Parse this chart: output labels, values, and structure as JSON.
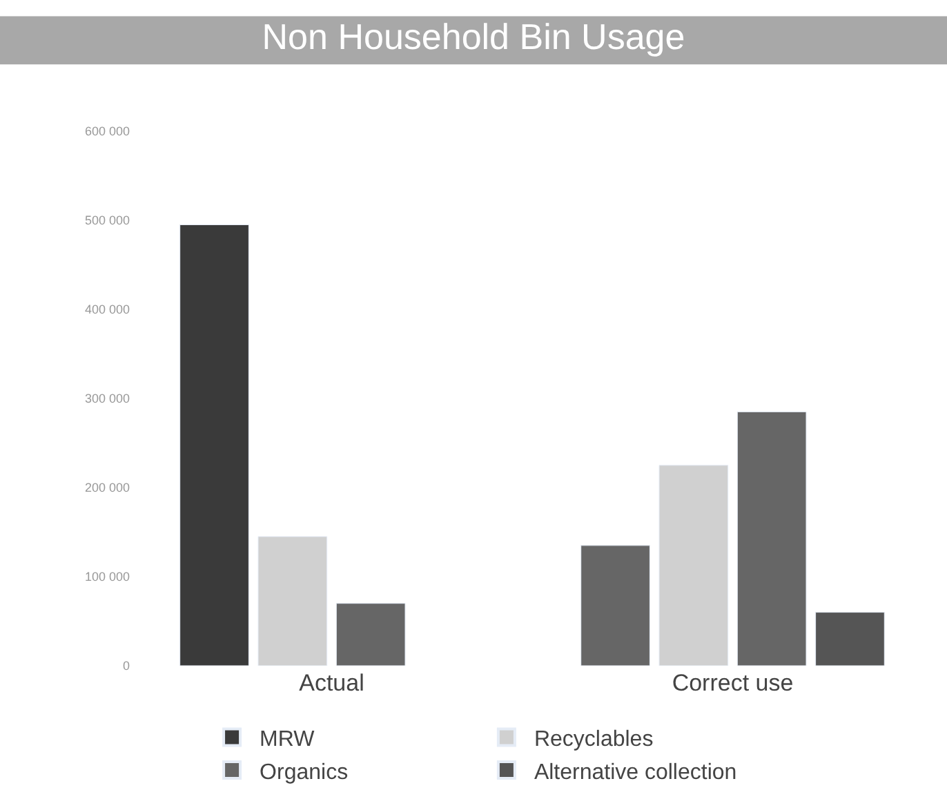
{
  "chart_data": {
    "type": "bar",
    "title": "Non Household Bin Usage",
    "categories": [
      "Actual",
      "Correct use"
    ],
    "series": [
      {
        "name": "MRW",
        "colors": [
          "#3a3a3a",
          "#666666"
        ],
        "color": "#5a5a5a",
        "values": [
          495000,
          135000
        ]
      },
      {
        "name": "Recyclables",
        "color": "#d0d0d0",
        "values": [
          145000,
          225000
        ]
      },
      {
        "name": "Organics",
        "color": "#666666",
        "values": [
          70000,
          285000
        ]
      },
      {
        "name": "Alternative collection",
        "color": "#555555",
        "values": [
          null,
          60000
        ]
      }
    ],
    "ylim": [
      0,
      600000
    ],
    "yticks": [
      {
        "value": 0,
        "label": "0"
      },
      {
        "value": 100000,
        "label": "100 000"
      },
      {
        "value": 200000,
        "label": "200 000"
      },
      {
        "value": 300000,
        "label": "300 000"
      },
      {
        "value": 400000,
        "label": "400 000"
      },
      {
        "value": 500000,
        "label": "500 000"
      },
      {
        "value": 600000,
        "label": "600 000"
      }
    ],
    "grid": false,
    "legend": "bottom"
  }
}
